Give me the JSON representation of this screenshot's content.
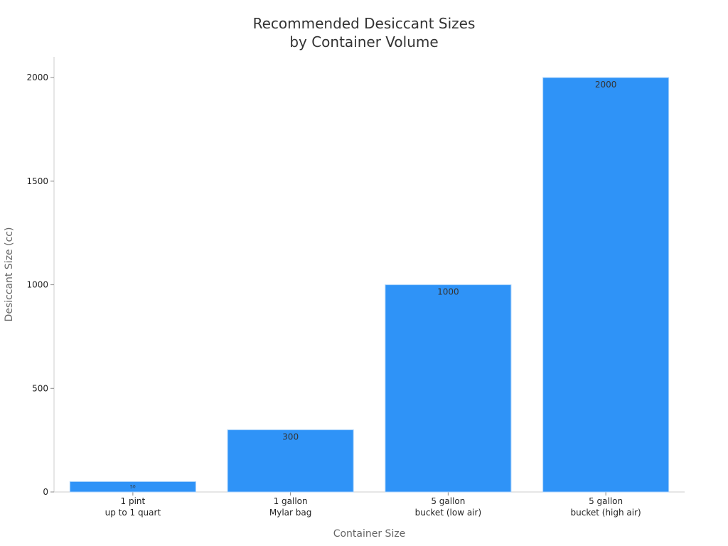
{
  "chart_data": {
    "type": "bar",
    "title_lines": [
      "Recommended Desiccant Sizes",
      "by Container Volume"
    ],
    "xlabel": "Container Size",
    "ylabel": "Desiccant Size (cc)",
    "categories": [
      [
        "1 pint",
        "up to 1 quart"
      ],
      [
        "1 gallon",
        "Mylar bag"
      ],
      [
        "5 gallon",
        "bucket (low air)"
      ],
      [
        "5 gallon",
        "bucket (high air)"
      ]
    ],
    "values": [
      50,
      300,
      1000,
      2000
    ],
    "data_labels": [
      "50",
      "300",
      "1000",
      "2000"
    ],
    "ylim": [
      0,
      2100
    ],
    "yticks": [
      0,
      500,
      1000,
      1500,
      2000
    ],
    "grid": false,
    "legend": "none",
    "colors": {
      "bar": "#2f93f7",
      "bar_edge": "#a9d2fb",
      "axis": "#cccccc",
      "title": "#333333",
      "label": "#666666",
      "tick_text": "#222222",
      "data_label": "#333333"
    }
  }
}
